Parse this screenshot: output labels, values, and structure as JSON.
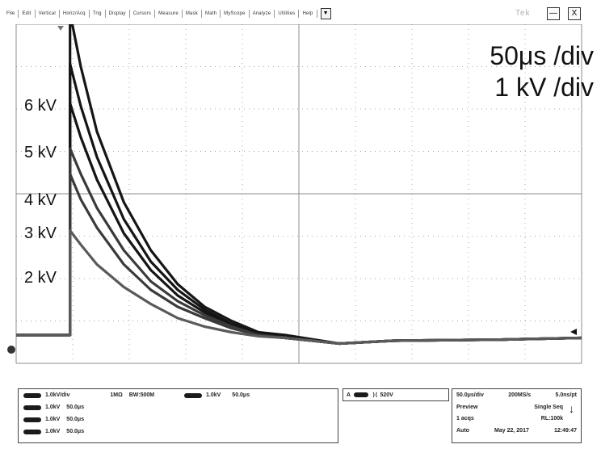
{
  "menu": {
    "items": [
      "File",
      "Edit",
      "Vertical",
      "Horiz/Acq",
      "Trig",
      "Display",
      "Cursors",
      "Measure",
      "Mask",
      "Math",
      "MyScope",
      "Analyze",
      "Utilities",
      "Help"
    ],
    "dropdown_icon": "▼"
  },
  "window": {
    "brand": "Tek",
    "minimize": "—",
    "close": "X"
  },
  "scales": {
    "time": "50μs /div",
    "voltage": "1 kV /div"
  },
  "level_labels": [
    "6 kV",
    "5 kV",
    "4 kV",
    "3 kV",
    "2 kV"
  ],
  "channel_panel": {
    "rows": [
      [
        "1.0kV/div",
        "1MΩ",
        "BW:500M"
      ],
      [
        "1.0kV",
        "50.0μs"
      ],
      [
        "1.0kV",
        "50.0μs"
      ],
      [
        "1.0kV",
        "50.0μs"
      ]
    ],
    "extra": [
      "1.0kV",
      "50.0μs"
    ]
  },
  "trigger": {
    "source": "A",
    "value": "520V"
  },
  "acquisition": {
    "rows": [
      [
        "50.0μs/div",
        "200MS/s",
        "5.0ns/pt"
      ],
      [
        "Preview",
        "Single Seq"
      ],
      [
        "1 acqs",
        "RL:100k"
      ],
      [
        "Auto",
        "May 22, 2017",
        "12:49:47"
      ]
    ],
    "arrow": "↓"
  },
  "colors": {
    "trace_dark": "#151515",
    "trace_mid": "#3a3a3a",
    "trace_light": "#5a5a5a",
    "grid": "#8c8c8c"
  },
  "chart_data": {
    "type": "line",
    "title": "",
    "xlabel": "",
    "ylabel": "",
    "x_unit": "μs",
    "y_unit": "kV",
    "xlim": [
      -50,
      475
    ],
    "ylim": [
      -0.5,
      5.5
    ],
    "grid": true,
    "divisions": {
      "x": 10,
      "y": 8
    },
    "time_per_div": "50μs /div",
    "volts_per_div": "1 kV /div",
    "x": [
      -50,
      0,
      10,
      25,
      50,
      75,
      100,
      125,
      150,
      175,
      200,
      250,
      300,
      400,
      475
    ],
    "series": [
      {
        "name": "6 kV",
        "values": [
          0,
          5.7,
          4.75,
          3.6,
          2.35,
          1.5,
          0.9,
          0.5,
          0.25,
          0.05,
          0,
          -0.15,
          -0.1,
          -0.08,
          -0.05
        ]
      },
      {
        "name": "5 kV",
        "values": [
          0,
          4.8,
          4.05,
          3.15,
          2.05,
          1.3,
          0.8,
          0.45,
          0.2,
          0.02,
          -0.05,
          -0.15,
          -0.1,
          -0.08,
          -0.05
        ]
      },
      {
        "name": "4 kV",
        "values": [
          0,
          4.1,
          3.5,
          2.75,
          1.8,
          1.15,
          0.7,
          0.4,
          0.18,
          0.0,
          -0.05,
          -0.15,
          -0.1,
          -0.08,
          -0.05
        ]
      },
      {
        "name": "3 kV",
        "values": [
          0,
          3.3,
          2.85,
          2.25,
          1.5,
          0.95,
          0.6,
          0.35,
          0.15,
          0.0,
          -0.05,
          -0.15,
          -0.1,
          -0.08,
          -0.05
        ]
      },
      {
        "name": "2 kV",
        "values": [
          0,
          2.85,
          2.4,
          1.9,
          1.25,
          0.8,
          0.5,
          0.3,
          0.12,
          0.0,
          -0.05,
          -0.15,
          -0.1,
          -0.08,
          -0.05
        ]
      },
      {
        "name": "1 kV",
        "values": [
          0,
          1.85,
          1.6,
          1.25,
          0.85,
          0.55,
          0.3,
          0.15,
          0.05,
          -0.02,
          -0.05,
          -0.15,
          -0.1,
          -0.08,
          -0.05
        ]
      }
    ]
  }
}
